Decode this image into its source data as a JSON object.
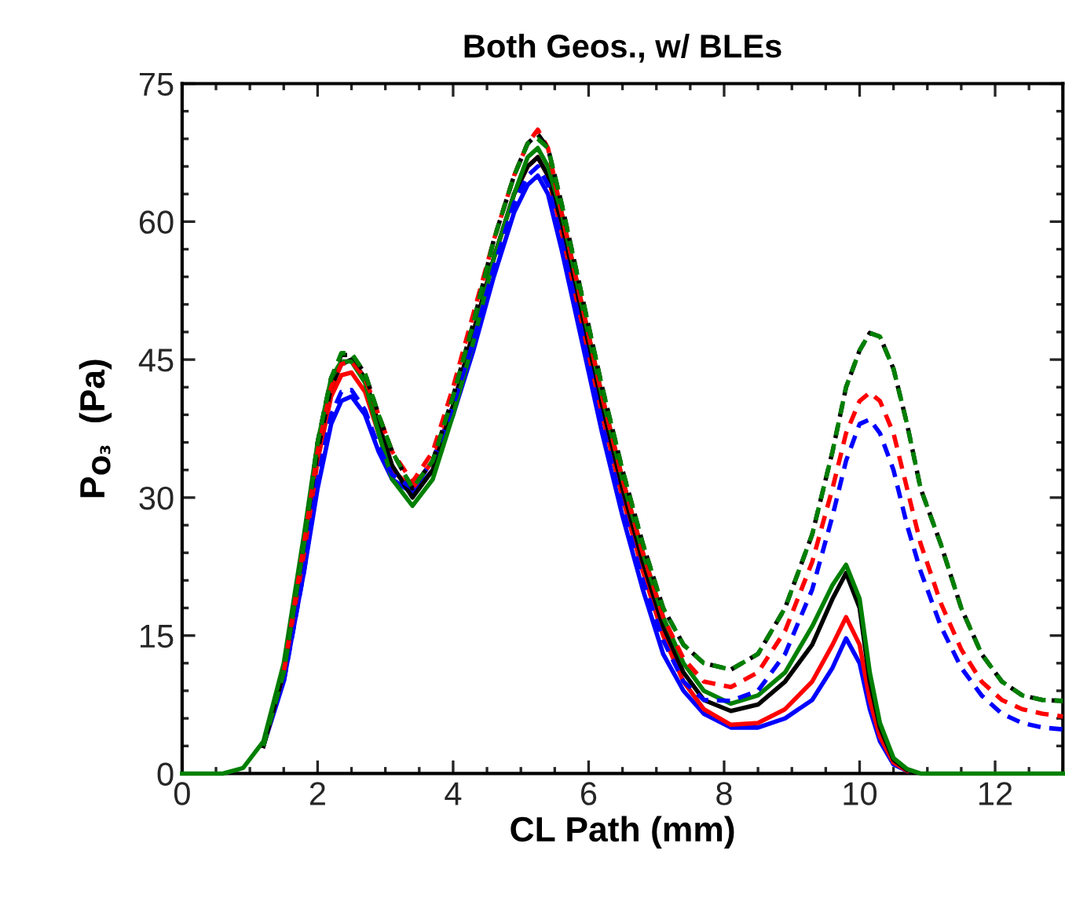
{
  "chart_data": {
    "type": "line",
    "title": "Both Geos., w/ BLEs",
    "xlabel": "CL Path (mm)",
    "ylabel": "P$_{O₃}$  (Pa)",
    "x": [
      0,
      0.6,
      0.9,
      1.2,
      1.5,
      1.8,
      2.0,
      2.2,
      2.35,
      2.5,
      2.7,
      2.9,
      3.1,
      3.4,
      3.7,
      4.0,
      4.3,
      4.6,
      4.9,
      5.1,
      5.25,
      5.4,
      5.6,
      5.9,
      6.2,
      6.5,
      6.8,
      7.1,
      7.4,
      7.7,
      8.1,
      8.5,
      8.9,
      9.3,
      9.6,
      9.8,
      10.0,
      10.15,
      10.3,
      10.5,
      10.7,
      10.9,
      11.2,
      11.5,
      11.8,
      12.1,
      12.4,
      12.7,
      13.0
    ],
    "xlim": [
      0,
      13
    ],
    "xticks": [
      0,
      2,
      4,
      6,
      8,
      10,
      12
    ],
    "ylim": [
      0,
      75
    ],
    "yticks": [
      0,
      15,
      30,
      45,
      60,
      75
    ],
    "grid": false,
    "legend": false,
    "marker": "none",
    "series": [
      {
        "color": "#0000ff",
        "line_style": "solid",
        "values": [
          null,
          null,
          null,
          3,
          10,
          22,
          31,
          38,
          40.5,
          41,
          39,
          35,
          32,
          30.5,
          33,
          39,
          46,
          54,
          61,
          64,
          65,
          63,
          57,
          47,
          37,
          28,
          20,
          13,
          9,
          6.5,
          5,
          5,
          6,
          8,
          11.5,
          14.7,
          12,
          7,
          3.5,
          1,
          0.3,
          null,
          null,
          null,
          null,
          null,
          null,
          null,
          null
        ]
      },
      {
        "color": "#0000ff",
        "line_style": "dashed",
        "values": [
          null,
          null,
          null,
          null,
          10,
          22,
          32,
          39,
          41.5,
          41.7,
          39.5,
          35.5,
          32.5,
          31,
          34,
          40,
          47,
          55,
          62,
          65,
          66,
          64,
          58,
          48,
          38,
          29,
          21,
          14.5,
          10,
          8,
          7.9,
          9,
          13,
          20,
          28,
          34,
          38,
          38.5,
          37,
          33,
          27,
          22,
          16,
          11.5,
          8.5,
          6.5,
          5.5,
          5,
          4.8
        ]
      },
      {
        "color": "#ff0000",
        "line_style": "solid",
        "values": [
          null,
          null,
          null,
          3,
          11,
          24,
          34,
          41,
          43.3,
          43.6,
          41.5,
          37,
          33,
          31,
          34,
          40,
          48,
          56,
          63,
          66,
          67,
          65,
          59,
          49,
          39,
          30,
          22,
          15,
          10,
          7,
          5.3,
          5.5,
          7,
          10,
          14,
          17,
          14,
          8,
          4,
          1.2,
          0.3,
          null,
          null,
          null,
          null,
          null,
          null,
          null,
          null
        ]
      },
      {
        "color": "#ff0000",
        "line_style": "dashed",
        "values": [
          null,
          null,
          null,
          null,
          11,
          25,
          35,
          42,
          44.5,
          44.8,
          43,
          39,
          35,
          31.7,
          35,
          42,
          50,
          58,
          65,
          68.5,
          70,
          68,
          61,
          51,
          41,
          32,
          24,
          17,
          12.5,
          10,
          9.4,
          11,
          15.5,
          23,
          31,
          37,
          40.5,
          41.4,
          40.5,
          37,
          31,
          25,
          18.5,
          13.5,
          10,
          8,
          7,
          6.5,
          6.2
        ]
      },
      {
        "color": "#000000",
        "line_style": "solid",
        "values": [
          null,
          null,
          null,
          3,
          11,
          25,
          35,
          42,
          44.5,
          45,
          43,
          38,
          33.5,
          30,
          33,
          40,
          48,
          56,
          63,
          66,
          67,
          65,
          60,
          50,
          40,
          31,
          23,
          16,
          11,
          8,
          6.8,
          7.5,
          10,
          14,
          19,
          21.8,
          18,
          10,
          5,
          1.5,
          0.4,
          null,
          null,
          null,
          null,
          null,
          null,
          null,
          null
        ]
      },
      {
        "color": "#000000",
        "line_style": "dashed",
        "values": [
          null,
          null,
          null,
          3,
          11,
          25,
          36,
          43,
          45.5,
          45.5,
          43.5,
          39,
          35,
          31,
          34,
          41,
          49,
          58,
          65,
          68.5,
          69.5,
          68,
          62,
          52,
          42,
          33,
          25,
          18,
          14,
          12,
          11.3,
          13,
          18,
          26,
          35,
          42,
          46,
          47.9,
          47.5,
          44,
          38,
          31,
          24.9,
          18,
          13,
          10,
          8.5,
          8,
          7.9
        ]
      },
      {
        "color": "#008000",
        "line_style": "solid",
        "values": [
          0,
          0,
          0.6,
          3.5,
          12,
          26,
          36,
          43,
          44.8,
          44.8,
          42.5,
          37,
          32,
          29.1,
          32,
          39,
          47,
          56,
          63,
          67,
          68,
          66,
          61,
          51,
          41,
          32,
          24,
          17,
          12,
          9,
          7.6,
          8.5,
          11,
          16,
          20.5,
          22.7,
          19,
          11,
          5.5,
          1.7,
          0.5,
          0,
          0,
          0,
          0,
          0,
          0,
          0,
          0
        ]
      },
      {
        "color": "#008000",
        "line_style": "dashed",
        "values": [
          null,
          null,
          null,
          3,
          11,
          25,
          36,
          43,
          45.7,
          45.7,
          43.5,
          39,
          35,
          31,
          34,
          41,
          49,
          58,
          65,
          68.5,
          69,
          68,
          62,
          52,
          42,
          33,
          25,
          18,
          14,
          12,
          11.3,
          13,
          18,
          26,
          35,
          42,
          46,
          47.9,
          47.5,
          44,
          38,
          31,
          24.9,
          18,
          13,
          10,
          8.5,
          8,
          7.9
        ]
      }
    ]
  }
}
